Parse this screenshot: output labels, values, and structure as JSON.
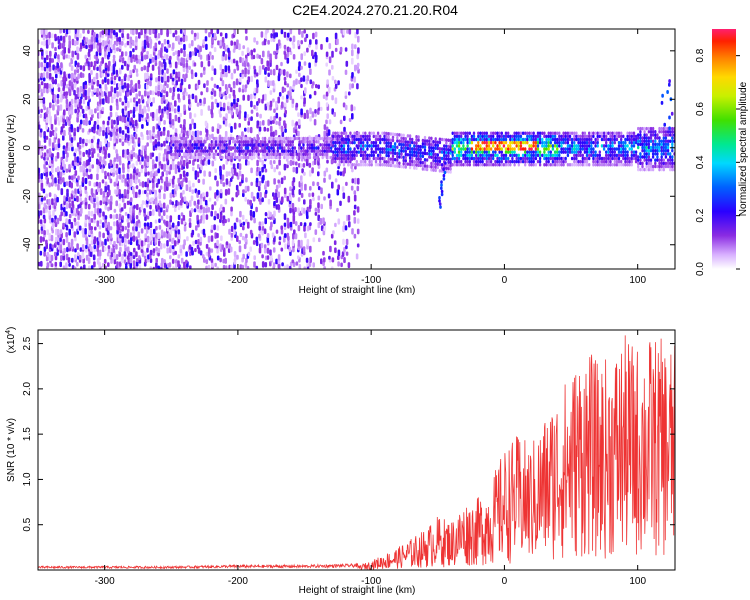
{
  "figure": {
    "title": "C2E4.2024.270.21.20.R04"
  },
  "colors": {
    "snr_line": "#ee3333",
    "axis": "#000000",
    "background": "#ffffff"
  },
  "chart_data": [
    {
      "type": "heatmap",
      "xlabel": "Height of straight line (km)",
      "ylabel": "Frequency (Hz)",
      "xlim": [
        -350,
        128
      ],
      "ylim": [
        -50,
        49
      ],
      "x_ticks": [
        "-300",
        "-200",
        "-100",
        "0",
        "100"
      ],
      "x_tick_values": [
        -300,
        -200,
        -100,
        0,
        100
      ],
      "y_ticks": [
        "40",
        "20",
        "0",
        "-20",
        "-40"
      ],
      "y_tick_values": [
        40,
        20,
        0,
        -20,
        -40
      ],
      "colorbar": {
        "label": "Normalized spectral amplitude",
        "range": [
          0.0,
          0.9
        ],
        "ticks": [
          "0.0",
          "0.2",
          "0.4",
          "0.6",
          "0.8"
        ],
        "tick_values": [
          0.0,
          0.2,
          0.4,
          0.6,
          0.8
        ],
        "colormap": "rainbow"
      },
      "features": {
        "diffuse_noise_region_km": [
          -350,
          -110
        ],
        "main_band_center_hz": 0,
        "peak_amplitude_near_km": [
          -25,
          25
        ]
      }
    },
    {
      "type": "line",
      "xlabel": "Height of straight line (km)",
      "ylabel": "SNR (10 * v/v)",
      "y_multiplier": "(x10",
      "y_multiplier_exp": "4",
      "ylim": [
        0,
        2.65
      ],
      "xlim": [
        -350,
        128
      ],
      "x_ticks": [
        "-300",
        "-200",
        "-100",
        "0",
        "100"
      ],
      "x_tick_values": [
        -300,
        -200,
        -100,
        0,
        100
      ],
      "y_ticks": [
        "0.5",
        "1.0",
        "1.5",
        "2.0",
        "2.5"
      ],
      "y_tick_values": [
        0.5,
        1.0,
        1.5,
        2.0,
        2.5
      ],
      "series": [
        {
          "x": [
            -350,
            -300,
            -250,
            -200,
            -150,
            -110,
            -100,
            -90,
            -80,
            -70,
            -60,
            -50,
            -40,
            -30,
            -20,
            -10,
            0,
            10,
            20,
            30,
            40,
            50,
            60,
            70,
            80,
            90,
            100,
            110,
            120,
            128
          ],
          "values": [
            0.03,
            0.03,
            0.03,
            0.04,
            0.04,
            0.05,
            0.1,
            0.18,
            0.25,
            0.35,
            0.45,
            0.6,
            0.55,
            0.75,
            0.8,
            1.0,
            1.35,
            1.5,
            1.4,
            1.7,
            2.0,
            2.2,
            2.5,
            2.3,
            2.4,
            2.6,
            2.5,
            2.6,
            2.55,
            2.5
          ]
        }
      ]
    }
  ]
}
